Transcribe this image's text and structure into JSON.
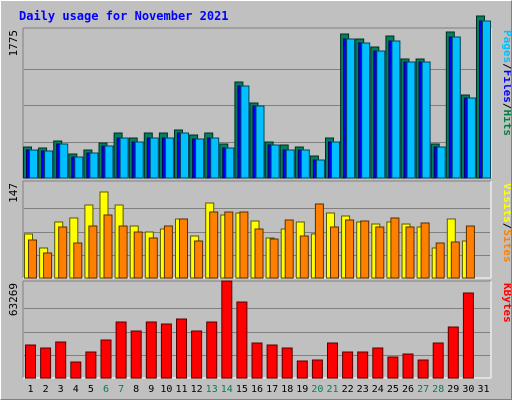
{
  "chart_data": {
    "type": "bar",
    "title": "Daily usage for November 2021",
    "days": [
      "1",
      "2",
      "3",
      "4",
      "5",
      "6",
      "7",
      "8",
      "9",
      "10",
      "11",
      "12",
      "13",
      "14",
      "15",
      "16",
      "17",
      "18",
      "19",
      "20",
      "21",
      "22",
      "23",
      "24",
      "25",
      "26",
      "27",
      "28",
      "29",
      "30",
      "31"
    ],
    "weekend_days": [
      "6",
      "7",
      "13",
      "14",
      "20",
      "21",
      "27",
      "28"
    ],
    "panels": [
      {
        "name": "pages-files-hits",
        "ymax": 1775,
        "ymax_label": "1775",
        "legend": [
          {
            "text": "Pages",
            "color": "#00c0ff"
          },
          {
            "text": "/",
            "color": "#000000"
          },
          {
            "text": "Files",
            "color": "#0000ff"
          },
          {
            "text": "/",
            "color": "#000000"
          },
          {
            "text": "Hits",
            "color": "#008040"
          }
        ],
        "series": [
          {
            "name": "Hits",
            "color": "#00805c",
            "values": [
              381,
              363,
              449,
              295,
              336,
              426,
              544,
              489,
              544,
              544,
              580,
              517,
              544,
              408,
              1164,
              916,
              440,
              399,
              381,
              268,
              489,
              1747,
              1685,
              1595,
              1721,
              1450,
              1450,
              417,
              1771,
              1007,
              1973
            ]
          },
          {
            "name": "Files",
            "color": "#0000ff",
            "values": [
              345,
              327,
              413,
              250,
              300,
              390,
              490,
              435,
              490,
              490,
              544,
              471,
              490,
              363,
              1119,
              870,
              399,
              345,
              345,
              222,
              440,
              1685,
              1640,
              1549,
              1671,
              1405,
              1405,
              372,
              1720,
              972,
              1912
            ]
          },
          {
            "name": "Pages",
            "color": "#00c0ff",
            "values": [
              345,
              327,
              413,
              250,
              300,
              390,
              490,
              435,
              490,
              490,
              544,
              471,
              490,
              363,
              1119,
              870,
              399,
              345,
              345,
              222,
              440,
              1685,
              1640,
              1549,
              1671,
              1405,
              1405,
              372,
              1720,
              972,
              1912
            ]
          }
        ]
      },
      {
        "name": "visits-sites",
        "ymax": 147,
        "ymax_label": "147",
        "legend": [
          {
            "text": "Visits",
            "color": "#ffff00"
          },
          {
            "text": "/",
            "color": "#000000"
          },
          {
            "text": "Sites",
            "color": "#ff8000"
          }
        ],
        "series": [
          {
            "name": "Visits",
            "color": "#ffff00",
            "values": [
              70,
              47,
              88,
              95,
              115,
              136,
              115,
              82,
              73,
              78,
              93,
              66,
              119,
              100,
              103,
              90,
              63,
              78,
              88,
              70,
              103,
              98,
              89,
              85,
              88,
              86,
              80,
              48,
              94,
              59,
              0
            ]
          },
          {
            "name": "Sites",
            "color": "#ff8000",
            "values": [
              60,
              40,
              80,
              55,
              82,
              100,
              82,
              72,
              64,
              82,
              93,
              59,
              104,
              105,
              105,
              78,
              62,
              92,
              67,
              117,
              81,
              91,
              90,
              80,
              95,
              81,
              87,
              56,
              57,
              82,
              0
            ]
          }
        ]
      },
      {
        "name": "kbytes",
        "ymax": 63269,
        "ymax_label": "63269",
        "legend": [
          {
            "text": "KBytes",
            "color": "#ff0000"
          }
        ],
        "series": [
          {
            "name": "KBytes",
            "color": "#ff0000",
            "values": [
              22500,
              20500,
              24400,
              10800,
              18000,
              25800,
              38000,
              32000,
              38000,
              37000,
              40400,
              32000,
              38000,
              66000,
              52000,
              24000,
              22500,
              20500,
              11500,
              12500,
              23500,
              18000,
              18000,
              20500,
              14500,
              16000,
              12500,
              24000,
              35000,
              57500,
              0
            ]
          }
        ]
      }
    ]
  }
}
